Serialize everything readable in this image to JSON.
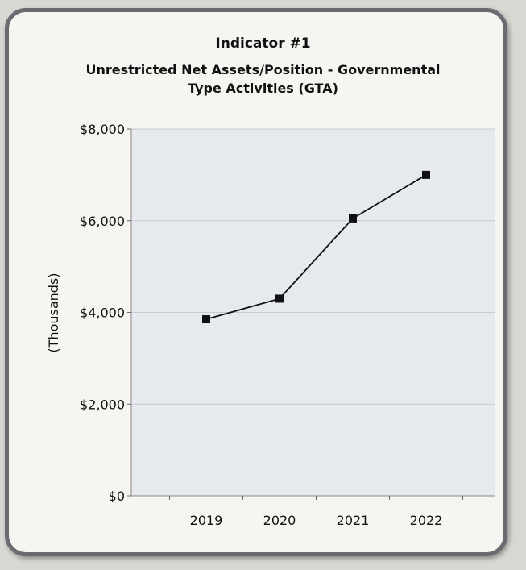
{
  "chart_data": {
    "type": "line",
    "title_line1": "Indicator #1",
    "title_line2": "Unrestricted Net Assets/Position - Governmental",
    "title_line3": "Type Activities (GTA)",
    "xlabel": "",
    "ylabel": "(Thousands)",
    "categories": [
      "2019",
      "2020",
      "2021",
      "2022"
    ],
    "series": [
      {
        "values": [
          3850,
          4300,
          6050,
          7000
        ]
      }
    ],
    "ylim": [
      0,
      8000
    ],
    "yticks": [
      0,
      2000,
      4000,
      6000,
      8000
    ],
    "ytick_labels": [
      "$0",
      "$2,000",
      "$4,000",
      "$6,000",
      "$8,000"
    ],
    "grid": true,
    "legend": "none",
    "colors": {
      "line": "#111111",
      "plot_bg": "#e6e9ee",
      "grid": "#c7cbd2"
    }
  }
}
